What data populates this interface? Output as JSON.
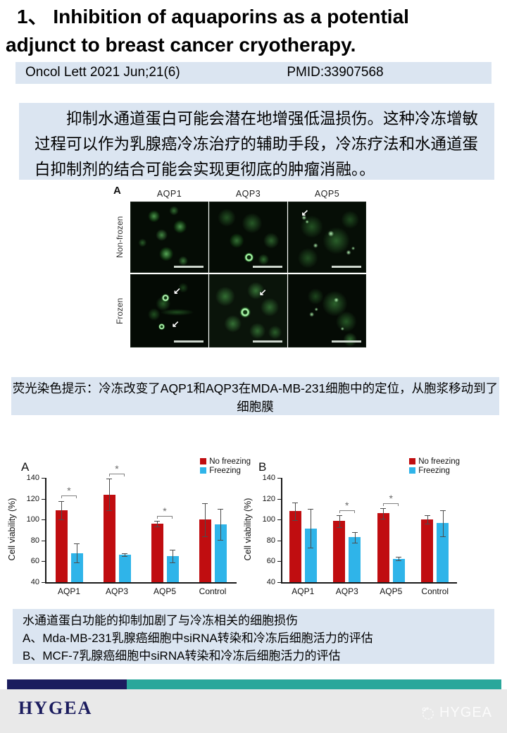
{
  "slide": {
    "title_line1": "1、 Inhibition of aquaporins as a potential",
    "title_line2": "adjunct to breast cancer cryotherapy.",
    "journal_ref": "Oncol Lett 2021 Jun;21(6)",
    "pmid": "PMID:33907568",
    "summary_cn": "抑制水通道蛋白可能会潜在地增强低温损伤。这种冷冻增敏过程可以作为乳腺癌冷冻治疗的辅助手段，冷冻疗法和水通道蛋白抑制剂的结合可能会实现更彻底的肿瘤消融。。",
    "figure_caption": "荧光染色提示：冷冻改变了AQP1和AQP3在MDA-MB-231细胞中的定位，从胞浆移动到了细胞膜",
    "bottom_caption_line1": "水通道蛋白功能的抑制加剧了与冷冻相关的细胞损伤",
    "bottom_caption_line2": "A、Mda-MB-231乳腺癌细胞中siRNA转染和冷冻后细胞活力的评估",
    "bottom_caption_line3": "B、MCF-7乳腺癌细胞中siRNA转染和冷冻后细胞活力的评估"
  },
  "micrograph_figure": {
    "panel_label": "A",
    "column_headers": [
      "AQP1",
      "AQP3",
      "AQP5"
    ],
    "row_labels": [
      "Non-frozen",
      "Frozen"
    ]
  },
  "footer": {
    "logo_text": "HYGEA",
    "watermark_text": "HYGEA",
    "bar_navy": "#1b1c5e",
    "bar_teal": "#2aa79b"
  },
  "colors": {
    "panel_blue": "#dbe5f1",
    "bar_red": "#c00d10",
    "bar_blue": "#2fb4e9"
  },
  "chart_data": [
    {
      "type": "bar",
      "panel_label": "A",
      "categories": [
        "AQP1",
        "AQP3",
        "AQP5",
        "Control"
      ],
      "series": [
        {
          "name": "No freezing",
          "color": "#c00d10",
          "values": [
            109,
            124,
            96,
            100
          ],
          "errors": [
            9,
            15,
            2.5,
            16
          ]
        },
        {
          "name": "Freezing",
          "color": "#2fb4e9",
          "values": [
            68,
            66.5,
            65,
            95.5
          ],
          "errors": [
            9,
            1.5,
            6,
            15
          ]
        }
      ],
      "ylabel": "Cell viability (%)",
      "ylim": [
        40,
        140
      ],
      "yticks": [
        40,
        60,
        80,
        100,
        120,
        140
      ],
      "significant_categories": [
        "AQP1",
        "AQP3",
        "AQP5"
      ],
      "legend_position": "top-right",
      "grid": false
    },
    {
      "type": "bar",
      "panel_label": "B",
      "categories": [
        "AQP1",
        "AQP3",
        "AQP5",
        "Control"
      ],
      "series": [
        {
          "name": "No freezing",
          "color": "#c00d10",
          "values": [
            108,
            98.5,
            106,
            100
          ],
          "errors": [
            8.5,
            5.5,
            5,
            4
          ]
        },
        {
          "name": "Freezing",
          "color": "#2fb4e9",
          "values": [
            91.5,
            83,
            62.5,
            96.5
          ],
          "errors": [
            18.5,
            5,
            1.5,
            12.5
          ]
        }
      ],
      "ylabel": "Cell viability (%)",
      "ylim": [
        40,
        140
      ],
      "yticks": [
        40,
        60,
        80,
        100,
        120,
        140
      ],
      "significant_categories": [
        "AQP3",
        "AQP5"
      ],
      "legend_position": "top-right",
      "grid": false
    }
  ]
}
